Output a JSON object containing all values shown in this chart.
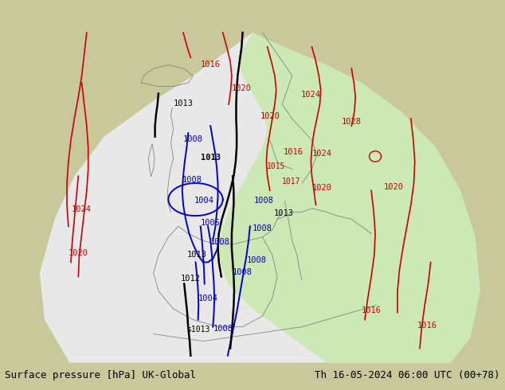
{
  "title_left": "Surface pressure [hPa] UK-Global",
  "title_right": "Th 16-05-2024 06:00 UTC (00+78)",
  "bg_color": "#c8c89a",
  "domain_color": "#e8e8e8",
  "green_color": "#c8e8b0",
  "coast_color": "#808878",
  "black_contour": "#000000",
  "blue_contour": "#0000cc",
  "red_contour": "#cc0000",
  "label_fontsize": 7.5,
  "title_fontsize": 9,
  "figsize": [
    6.34,
    4.9
  ],
  "dpi": 100
}
